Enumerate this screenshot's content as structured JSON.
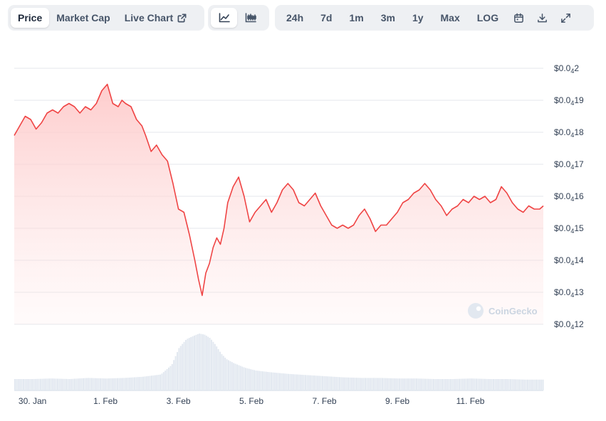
{
  "toolbar": {
    "tabs": [
      {
        "label": "Price",
        "active": true
      },
      {
        "label": "Market Cap",
        "active": false
      },
      {
        "label": "Live Chart",
        "active": false
      }
    ],
    "chart_types": [
      {
        "icon": "line-chart-icon",
        "active": true
      },
      {
        "icon": "candlestick-chart-icon",
        "active": false
      }
    ],
    "ranges": [
      "24h",
      "7d",
      "1m",
      "3m",
      "1y",
      "Max",
      "LOG"
    ],
    "tools": [
      "calendar-icon",
      "download-icon",
      "expand-icon"
    ]
  },
  "watermark": "CoinGecko",
  "colors": {
    "line": "#ef4444",
    "fill_top": "#fecaca",
    "volume": "#e2e8f0",
    "grid": "#e5e7eb"
  },
  "chart_data": {
    "type": "area",
    "title": "",
    "xlabel": "",
    "ylabel": "",
    "y_axis_position": "right",
    "grid": true,
    "y_tick_labels": [
      {
        "prefix": "$0.0",
        "sub": "4",
        "digits": "2"
      },
      {
        "prefix": "$0.0",
        "sub": "4",
        "digits": "19"
      },
      {
        "prefix": "$0.0",
        "sub": "4",
        "digits": "18"
      },
      {
        "prefix": "$0.0",
        "sub": "4",
        "digits": "17"
      },
      {
        "prefix": "$0.0",
        "sub": "4",
        "digits": "16"
      },
      {
        "prefix": "$0.0",
        "sub": "4",
        "digits": "15"
      },
      {
        "prefix": "$0.0",
        "sub": "4",
        "digits": "14"
      },
      {
        "prefix": "$0.0",
        "sub": "4",
        "digits": "13"
      },
      {
        "prefix": "$0.0",
        "sub": "4",
        "digits": "12"
      }
    ],
    "y_ticks": [
      2e-05,
      1.9e-05,
      1.8e-05,
      1.7e-05,
      1.6e-05,
      1.5e-05,
      1.4e-05,
      1.3e-05,
      1.2e-05
    ],
    "ylim": [
      1.2e-05,
      2e-05
    ],
    "x_tick_labels": [
      "30. Jan",
      "1. Feb",
      "3. Feb",
      "5. Feb",
      "7. Feb",
      "9. Feb",
      "11. Feb"
    ],
    "x_ticks": [
      0.5,
      2.5,
      4.5,
      6.5,
      8.5,
      10.5,
      12.5
    ],
    "xlim": [
      0,
      14.5
    ],
    "x": [
      0,
      0.15,
      0.3,
      0.45,
      0.6,
      0.75,
      0.9,
      1.05,
      1.2,
      1.35,
      1.5,
      1.65,
      1.8,
      1.95,
      2.1,
      2.25,
      2.4,
      2.55,
      2.7,
      2.85,
      2.95,
      3.05,
      3.2,
      3.35,
      3.5,
      3.6,
      3.75,
      3.9,
      4.05,
      4.2,
      4.35,
      4.5,
      4.65,
      4.8,
      4.95,
      5.05,
      5.15,
      5.25,
      5.35,
      5.45,
      5.55,
      5.65,
      5.75,
      5.85,
      6.0,
      6.15,
      6.3,
      6.45,
      6.6,
      6.75,
      6.9,
      7.05,
      7.2,
      7.35,
      7.5,
      7.65,
      7.8,
      7.95,
      8.1,
      8.25,
      8.4,
      8.55,
      8.7,
      8.85,
      9.0,
      9.15,
      9.3,
      9.45,
      9.6,
      9.75,
      9.9,
      10.05,
      10.2,
      10.35,
      10.5,
      10.65,
      10.8,
      10.95,
      11.1,
      11.25,
      11.4,
      11.55,
      11.7,
      11.85,
      12.0,
      12.15,
      12.3,
      12.45,
      12.6,
      12.75,
      12.9,
      13.05,
      13.2,
      13.35,
      13.5,
      13.65,
      13.8,
      13.95,
      14.1,
      14.25,
      14.4,
      14.5
    ],
    "series": [
      {
        "values": [
          1.79e-05,
          1.82e-05,
          1.85e-05,
          1.84e-05,
          1.81e-05,
          1.83e-05,
          1.86e-05,
          1.87e-05,
          1.86e-05,
          1.88e-05,
          1.89e-05,
          1.88e-05,
          1.86e-05,
          1.88e-05,
          1.87e-05,
          1.89e-05,
          1.93e-05,
          1.95e-05,
          1.89e-05,
          1.88e-05,
          1.9e-05,
          1.89e-05,
          1.88e-05,
          1.84e-05,
          1.82e-05,
          1.79e-05,
          1.74e-05,
          1.76e-05,
          1.73e-05,
          1.71e-05,
          1.64e-05,
          1.56e-05,
          1.55e-05,
          1.48e-05,
          1.4e-05,
          1.34e-05,
          1.29e-05,
          1.36e-05,
          1.39e-05,
          1.44e-05,
          1.47e-05,
          1.45e-05,
          1.5e-05,
          1.58e-05,
          1.63e-05,
          1.66e-05,
          1.6e-05,
          1.52e-05,
          1.55e-05,
          1.57e-05,
          1.59e-05,
          1.55e-05,
          1.58e-05,
          1.62e-05,
          1.64e-05,
          1.62e-05,
          1.58e-05,
          1.57e-05,
          1.59e-05,
          1.61e-05,
          1.57e-05,
          1.54e-05,
          1.51e-05,
          1.5e-05,
          1.51e-05,
          1.5e-05,
          1.51e-05,
          1.54e-05,
          1.56e-05,
          1.53e-05,
          1.49e-05,
          1.51e-05,
          1.51e-05,
          1.53e-05,
          1.55e-05,
          1.58e-05,
          1.59e-05,
          1.61e-05,
          1.62e-05,
          1.64e-05,
          1.62e-05,
          1.59e-05,
          1.57e-05,
          1.54e-05,
          1.56e-05,
          1.57e-05,
          1.59e-05,
          1.58e-05,
          1.6e-05,
          1.59e-05,
          1.6e-05,
          1.58e-05,
          1.59e-05,
          1.63e-05,
          1.61e-05,
          1.58e-05,
          1.56e-05,
          1.55e-05,
          1.57e-05,
          1.56e-05,
          1.56e-05,
          1.57e-05
        ]
      }
    ],
    "volume": {
      "x": [
        0,
        0.5,
        1.0,
        1.5,
        2.0,
        2.5,
        3.0,
        3.5,
        4.0,
        4.3,
        4.5,
        4.7,
        4.9,
        5.05,
        5.2,
        5.35,
        5.5,
        5.65,
        5.8,
        6.0,
        6.3,
        6.6,
        7.0,
        7.5,
        8.0,
        8.5,
        9.0,
        9.5,
        10.0,
        10.5,
        11.0,
        11.5,
        12.0,
        12.5,
        13.0,
        13.5,
        14.0,
        14.5
      ],
      "values": [
        0.2,
        0.2,
        0.21,
        0.2,
        0.22,
        0.21,
        0.22,
        0.24,
        0.28,
        0.45,
        0.75,
        0.9,
        0.96,
        1.0,
        0.98,
        0.92,
        0.8,
        0.65,
        0.55,
        0.48,
        0.4,
        0.35,
        0.32,
        0.29,
        0.27,
        0.25,
        0.23,
        0.22,
        0.22,
        0.21,
        0.21,
        0.2,
        0.2,
        0.21,
        0.2,
        0.2,
        0.19,
        0.19
      ]
    }
  }
}
